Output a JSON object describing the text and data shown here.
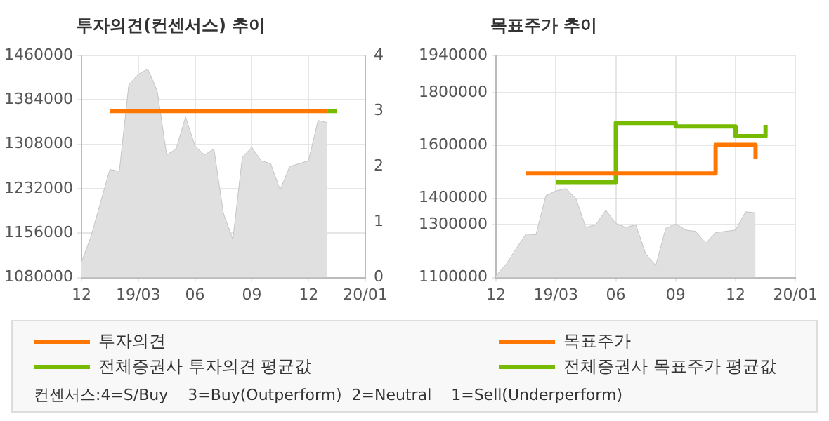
{
  "chart_data": [
    {
      "type": "area",
      "title": "투자의견(컨센서스) 추이",
      "categories": [
        "12",
        null,
        null,
        null,
        null,
        null,
        "19/03",
        null,
        null,
        null,
        null,
        null,
        "06",
        null,
        null,
        null,
        null,
        null,
        "09",
        null,
        null,
        null,
        null,
        null,
        "12",
        null,
        null,
        null,
        null,
        null,
        "20/01"
      ],
      "ylim": [
        1080000,
        1460000
      ],
      "yticks": [
        1080000,
        1156000,
        1232000,
        1308000,
        1384000,
        1460000
      ],
      "y2lim": [
        0,
        4
      ],
      "y2ticks": [
        0,
        1,
        2,
        3,
        4
      ],
      "grid": true,
      "legend": "bottom",
      "marker": "none",
      "annotations": [
        "컨센서스:4=S/Buy    3=Buy(Outperform)  2=Neutral    1=Sell(Underperform)"
      ],
      "series": [
        {
          "color": "#e0e0e0",
          "values": [
            1107000,
            1150000,
            1208000,
            1265000,
            1262000,
            1410000,
            1428000,
            1437000,
            1400000,
            1290000,
            1300000,
            1355000,
            1305000,
            1290000,
            1300000,
            1190000,
            1145000,
            1286000,
            1303000,
            1280000,
            1275000,
            1230000,
            1270000,
            1275000,
            1280000,
            1349000,
            1345000,
            null,
            null,
            null,
            null
          ]
        },
        {
          "type": "step",
          "name": "투자의견",
          "color": "#ff7700",
          "axis": "y2",
          "values": [
            null,
            null,
            null,
            3,
            3,
            3,
            3,
            3,
            3,
            3,
            3,
            3,
            3,
            3,
            3,
            3,
            3,
            3,
            3,
            3,
            3,
            3,
            3,
            3,
            3,
            3,
            3,
            null,
            null,
            null,
            null
          ]
        },
        {
          "type": "step",
          "name": "전체증권사 투자의견 평균값",
          "color": "#77bb00",
          "axis": "y2",
          "values": [
            null,
            null,
            null,
            null,
            null,
            null,
            null,
            null,
            null,
            null,
            null,
            null,
            null,
            null,
            null,
            null,
            null,
            null,
            null,
            null,
            null,
            null,
            null,
            null,
            null,
            null,
            3,
            3,
            null,
            null,
            null
          ]
        }
      ]
    },
    {
      "type": "area",
      "title": "목표주가 추이",
      "categories": [
        "12",
        null,
        null,
        null,
        null,
        null,
        "19/03",
        null,
        null,
        null,
        null,
        null,
        "06",
        null,
        null,
        null,
        null,
        null,
        "09",
        null,
        null,
        null,
        null,
        null,
        "12",
        null,
        null,
        null,
        null,
        null,
        "20/01"
      ],
      "ylim": [
        1100000,
        1940000
      ],
      "yticks": [
        1100000,
        1300000,
        1400000,
        1600000,
        1800000,
        1940000
      ],
      "grid": true,
      "legend": "bottom",
      "marker": "none",
      "series": [
        {
          "color": "#e0e0e0",
          "values": [
            1107000,
            1150000,
            1208000,
            1265000,
            1262000,
            1410000,
            1428000,
            1437000,
            1400000,
            1290000,
            1300000,
            1355000,
            1305000,
            1290000,
            1300000,
            1190000,
            1145000,
            1286000,
            1303000,
            1280000,
            1275000,
            1230000,
            1270000,
            1275000,
            1280000,
            1349000,
            1345000,
            null,
            null,
            null,
            null
          ]
        },
        {
          "type": "step",
          "name": "목표주가",
          "color": "#ff7700",
          "values": [
            null,
            null,
            null,
            1494000,
            1494000,
            1494000,
            1494000,
            1494000,
            1494000,
            1494000,
            1494000,
            1494000,
            1494000,
            1494000,
            1494000,
            1494000,
            1494000,
            1494000,
            1494000,
            1494000,
            1494000,
            1494000,
            1602000,
            1602000,
            1602000,
            1602000,
            1548000,
            null,
            null,
            null,
            null
          ]
        },
        {
          "type": "step",
          "name": "전체증권사 목표주가 평균값",
          "color": "#77bb00",
          "values": [
            null,
            null,
            null,
            null,
            null,
            null,
            1461000,
            1461000,
            1461000,
            1461000,
            1461000,
            1461000,
            1685000,
            1685000,
            1685000,
            1685000,
            1685000,
            1685000,
            1672000,
            1672000,
            1672000,
            1672000,
            1672000,
            1672000,
            1635000,
            1635000,
            1635000,
            1678000,
            null,
            null,
            null
          ]
        }
      ]
    }
  ]
}
